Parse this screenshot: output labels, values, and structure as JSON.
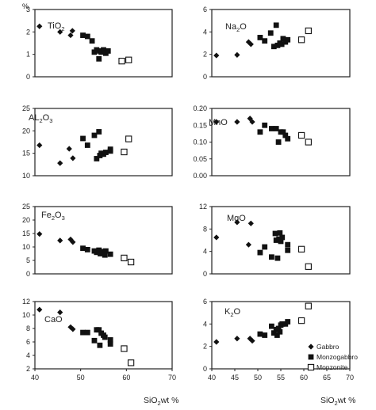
{
  "chart_data": [
    {
      "type": "scatter",
      "title_main": "TiO",
      "title_sub": "2",
      "ylabel": "%",
      "ylim": [
        0,
        3
      ],
      "yticks": [
        0,
        1,
        2,
        3
      ],
      "xlim": [
        40,
        70
      ],
      "series": [
        {
          "name": "Gabbro",
          "x": [
            41,
            45.5,
            47.8,
            48.2
          ],
          "y": [
            2.25,
            2.0,
            1.85,
            2.05
          ]
        },
        {
          "name": "Monzogabbro",
          "x": [
            50.5,
            51.5,
            52.5,
            53,
            53.5,
            54,
            54.2,
            54.5,
            55,
            55.5,
            56
          ],
          "y": [
            1.85,
            1.8,
            1.6,
            1.1,
            1.2,
            0.8,
            1.15,
            1.1,
            1.2,
            1.05,
            1.15
          ]
        },
        {
          "name": "Monzonite",
          "x": [
            59,
            60.5
          ],
          "y": [
            0.7,
            0.75
          ]
        }
      ]
    },
    {
      "type": "scatter",
      "title_main": "Na",
      "title_sub": "2",
      "title_end": "O",
      "ylim": [
        0,
        6
      ],
      "yticks": [
        0,
        2,
        4,
        6
      ],
      "xlim": [
        40,
        70
      ],
      "series": [
        {
          "name": "Gabbro",
          "x": [
            41,
            45.5,
            48,
            48.5
          ],
          "y": [
            1.9,
            1.95,
            3.1,
            2.9
          ]
        },
        {
          "name": "Monzogabbro",
          "x": [
            50.5,
            51.5,
            52.8,
            53.5,
            54,
            54.3,
            54.8,
            55.2,
            55.5,
            56,
            56.5
          ],
          "y": [
            3.5,
            3.2,
            3.9,
            2.7,
            4.6,
            2.8,
            3.0,
            2.9,
            3.4,
            3.1,
            3.3
          ]
        },
        {
          "name": "Monzonite",
          "x": [
            59.5,
            61
          ],
          "y": [
            3.3,
            4.1
          ]
        }
      ]
    },
    {
      "type": "scatter",
      "title_main": "AL",
      "title_sub": "2",
      "title_end": "O",
      "title_sub2": "3",
      "ylim": [
        10,
        25
      ],
      "yticks": [
        10,
        15,
        20,
        25
      ],
      "xlim": [
        40,
        70
      ],
      "series": [
        {
          "name": "Gabbro",
          "x": [
            41,
            45.5,
            47.5,
            48.3
          ],
          "y": [
            16.8,
            12.8,
            16.0,
            13.9
          ]
        },
        {
          "name": "Monzogabbro",
          "x": [
            50.5,
            51.5,
            53,
            53.5,
            54,
            54.2,
            54.5,
            55,
            55.5,
            56.5,
            56.5
          ],
          "y": [
            18.3,
            16.8,
            19.0,
            13.8,
            19.8,
            14.5,
            15.0,
            14.8,
            15.2,
            15.5,
            15.9
          ]
        },
        {
          "name": "Monzonite",
          "x": [
            59.5,
            60.5
          ],
          "y": [
            15.3,
            18.2
          ]
        }
      ]
    },
    {
      "type": "scatter",
      "title_main": "MnO",
      "ylim": [
        0,
        0.2
      ],
      "yticks": [
        0,
        0.05,
        0.1,
        0.15,
        0.2
      ],
      "ytickLabels": [
        "0.00",
        "0.05",
        "0.10",
        "0.15",
        "0.20"
      ],
      "xlim": [
        40,
        70
      ],
      "series": [
        {
          "name": "Gabbro",
          "x": [
            41,
            45.5,
            48.3,
            48.8
          ],
          "y": [
            0.16,
            0.16,
            0.17,
            0.16
          ]
        },
        {
          "name": "Monzogabbro",
          "x": [
            50.5,
            51.5,
            53,
            54,
            54.5,
            55,
            55.5,
            56,
            56.5
          ],
          "y": [
            0.13,
            0.15,
            0.14,
            0.14,
            0.1,
            0.13,
            0.13,
            0.12,
            0.11
          ]
        },
        {
          "name": "Monzonite",
          "x": [
            59.5,
            61
          ],
          "y": [
            0.12,
            0.1
          ]
        }
      ]
    },
    {
      "type": "scatter",
      "title_main": "Fe",
      "title_sub": "2",
      "title_end": "O",
      "title_sub2": "3",
      "ylim": [
        0,
        25
      ],
      "yticks": [
        0,
        5,
        10,
        15,
        20,
        25
      ],
      "xlim": [
        40,
        70
      ],
      "series": [
        {
          "name": "Gabbro",
          "x": [
            41,
            45.5,
            47.8,
            48.3
          ],
          "y": [
            14.8,
            12.4,
            12.8,
            11.8
          ]
        },
        {
          "name": "Monzogabbro",
          "x": [
            50.5,
            51.5,
            53,
            53.5,
            54,
            54.3,
            54.8,
            55.3,
            55.5,
            56.5
          ],
          "y": [
            9.5,
            9.0,
            8.5,
            8.0,
            8.8,
            7.5,
            8.3,
            7.0,
            8.5,
            7.3
          ]
        },
        {
          "name": "Monzonite",
          "x": [
            59.5,
            61
          ],
          "y": [
            5.9,
            4.4
          ]
        }
      ]
    },
    {
      "type": "scatter",
      "title_main": "MgO",
      "ylim": [
        0,
        12
      ],
      "yticks": [
        0,
        4,
        8,
        12
      ],
      "xlim": [
        40,
        70
      ],
      "series": [
        {
          "name": "Gabbro",
          "x": [
            41,
            45.5,
            48,
            48.5
          ],
          "y": [
            6.5,
            9.2,
            5.2,
            9.0
          ]
        },
        {
          "name": "Monzogabbro",
          "x": [
            50.5,
            51.5,
            53,
            53.8,
            54,
            54.3,
            54.8,
            55,
            55.3,
            56.5,
            56.5,
            54.6
          ],
          "y": [
            3.8,
            4.8,
            3.0,
            7.2,
            6.0,
            2.8,
            7.3,
            5.8,
            6.5,
            4.2,
            5.2,
            6.2
          ]
        },
        {
          "name": "Monzonite",
          "x": [
            59.5,
            61
          ],
          "y": [
            4.4,
            1.3
          ]
        }
      ]
    },
    {
      "type": "scatter",
      "title_main": "CaO",
      "ylim": [
        2,
        12
      ],
      "yticks": [
        2,
        4,
        6,
        8,
        10,
        12
      ],
      "xlim": [
        40,
        70
      ],
      "xlabel_main": "SiO",
      "xlabel_sub": "2",
      "xlabel_end": "wt %",
      "xticks": [
        40,
        50,
        60,
        70
      ],
      "xtickLabels": [
        "40",
        "50",
        "60",
        "70"
      ],
      "series": [
        {
          "name": "Gabbro",
          "x": [
            41,
            45.5,
            47.8,
            48.3
          ],
          "y": [
            10.8,
            10.4,
            8.2,
            7.9
          ]
        },
        {
          "name": "Monzogabbro",
          "x": [
            50.5,
            51.5,
            53,
            53.5,
            54,
            54.2,
            54.5,
            55,
            55.3,
            56.5,
            56.5
          ],
          "y": [
            7.4,
            7.4,
            6.2,
            7.8,
            7.8,
            5.5,
            7.3,
            7.0,
            6.7,
            6.3,
            5.7
          ]
        },
        {
          "name": "Monzonite",
          "x": [
            59.5,
            61
          ],
          "y": [
            5.0,
            2.9
          ]
        }
      ]
    },
    {
      "type": "scatter",
      "title_main": "K",
      "title_sub": "2",
      "title_end": "O",
      "ylim": [
        0,
        6
      ],
      "yticks": [
        0,
        2,
        4,
        6
      ],
      "xlim": [
        40,
        70
      ],
      "xlabel_main": "SiO",
      "xlabel_sub": "2",
      "xlabel_end": "wt %",
      "xticks": [
        40,
        45,
        50,
        55,
        60,
        65,
        70
      ],
      "xtickLabels": [
        "40",
        "45",
        "50",
        "55",
        "60",
        "65",
        "70"
      ],
      "series": [
        {
          "name": "Gabbro",
          "x": [
            41,
            45.5,
            48.3,
            48.8
          ],
          "y": [
            2.4,
            2.7,
            2.7,
            2.5
          ]
        },
        {
          "name": "Monzogabbro",
          "x": [
            50.5,
            51.5,
            53,
            53.5,
            54,
            54.2,
            54.5,
            55,
            55.3,
            56,
            56.5,
            54.8
          ],
          "y": [
            3.1,
            3.0,
            3.8,
            3.2,
            3.5,
            3.0,
            3.6,
            3.9,
            4.0,
            4.0,
            4.2,
            3.3
          ]
        },
        {
          "name": "Monzonite",
          "x": [
            59.5,
            61
          ],
          "y": [
            4.3,
            5.6
          ]
        }
      ]
    }
  ],
  "legend": [
    {
      "label": "Gabbro",
      "marker": "diamond-filled"
    },
    {
      "label": "Monzogabbro",
      "marker": "square-filled"
    },
    {
      "label": "Monzonite",
      "marker": "square-open"
    }
  ],
  "colors": {
    "marker": "#111111",
    "frame": "#222222",
    "background": "#ffffff"
  }
}
